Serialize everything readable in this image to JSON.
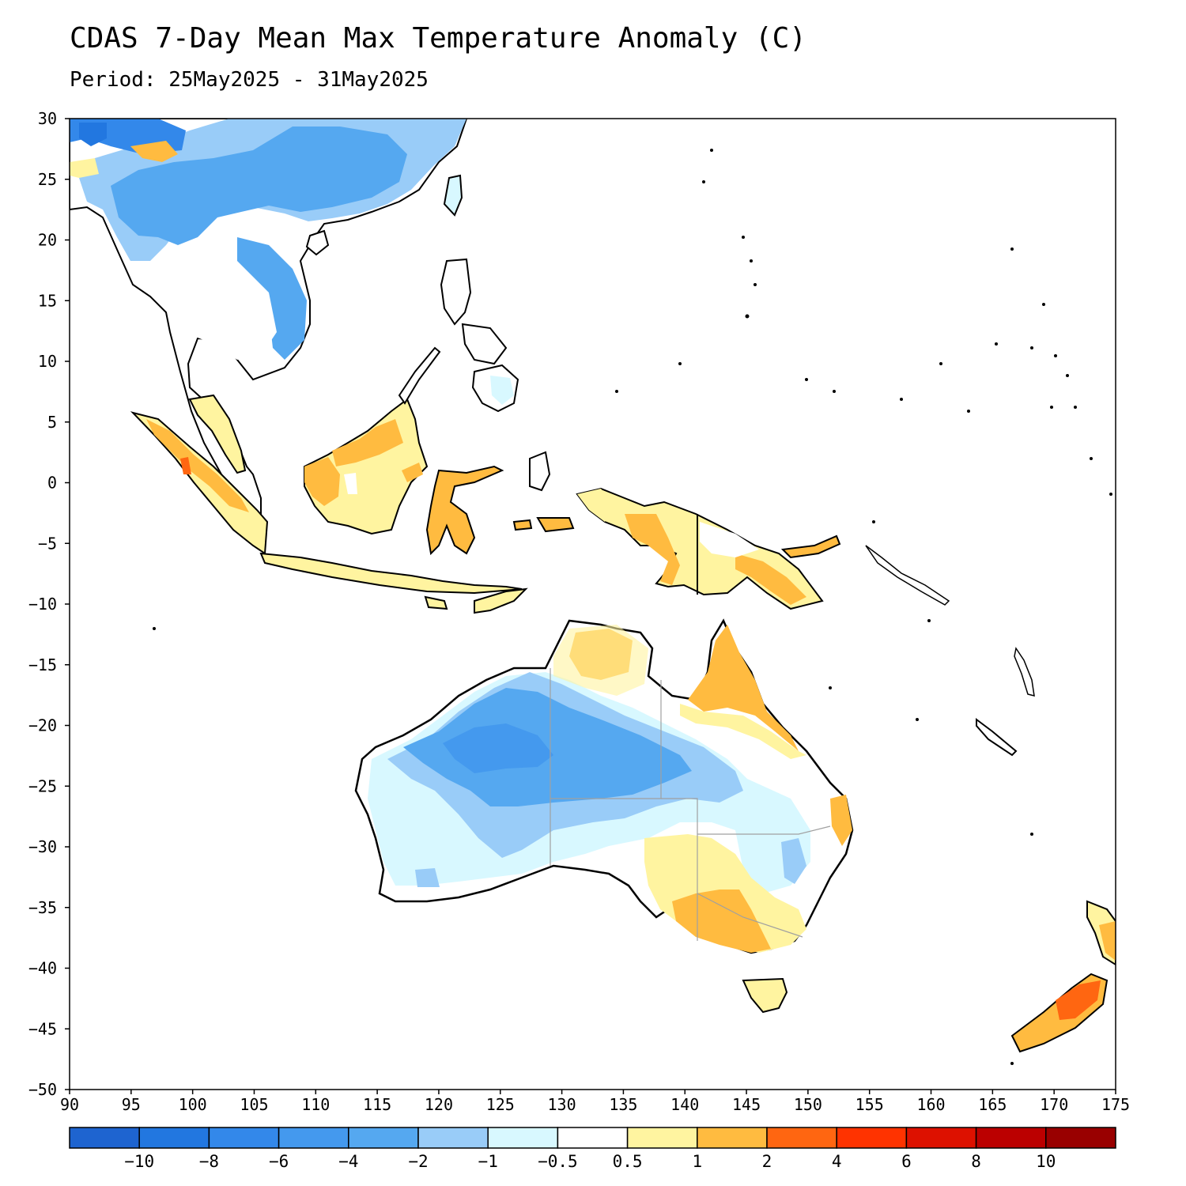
{
  "title": "CDAS 7-Day Mean Max Temperature Anomaly (C)",
  "subtitle": "Period: 25May2025 - 31May2025",
  "map": {
    "lon_range": [
      90,
      175
    ],
    "lat_range": [
      -50,
      30
    ],
    "x_ticks": [
      "90",
      "95",
      "100",
      "105",
      "110",
      "115",
      "120",
      "125",
      "130",
      "135",
      "140",
      "145",
      "150",
      "155",
      "160",
      "165",
      "170",
      "175"
    ],
    "y_ticks": [
      "30",
      "25",
      "20",
      "15",
      "10",
      "5",
      "0",
      "−5",
      "−10",
      "−15",
      "−20",
      "−25",
      "−30",
      "−35",
      "−40",
      "−45",
      "−50"
    ]
  },
  "colorbar": {
    "colors": [
      "#1e64d0",
      "#2277e0",
      "#3388ea",
      "#4499ee",
      "#55a8f0",
      "#99ccf8",
      "#d8f8ff",
      "#ffffff",
      "#fff4a0",
      "#ffbb40",
      "#ff6611",
      "#ff3300",
      "#dd1100",
      "#bb0000",
      "#990000"
    ],
    "labels": [
      "−10",
      "−8",
      "−6",
      "−4",
      "−2",
      "−1",
      "−0.5",
      "0.5",
      "1",
      "2",
      "4",
      "6",
      "8",
      "10"
    ]
  }
}
